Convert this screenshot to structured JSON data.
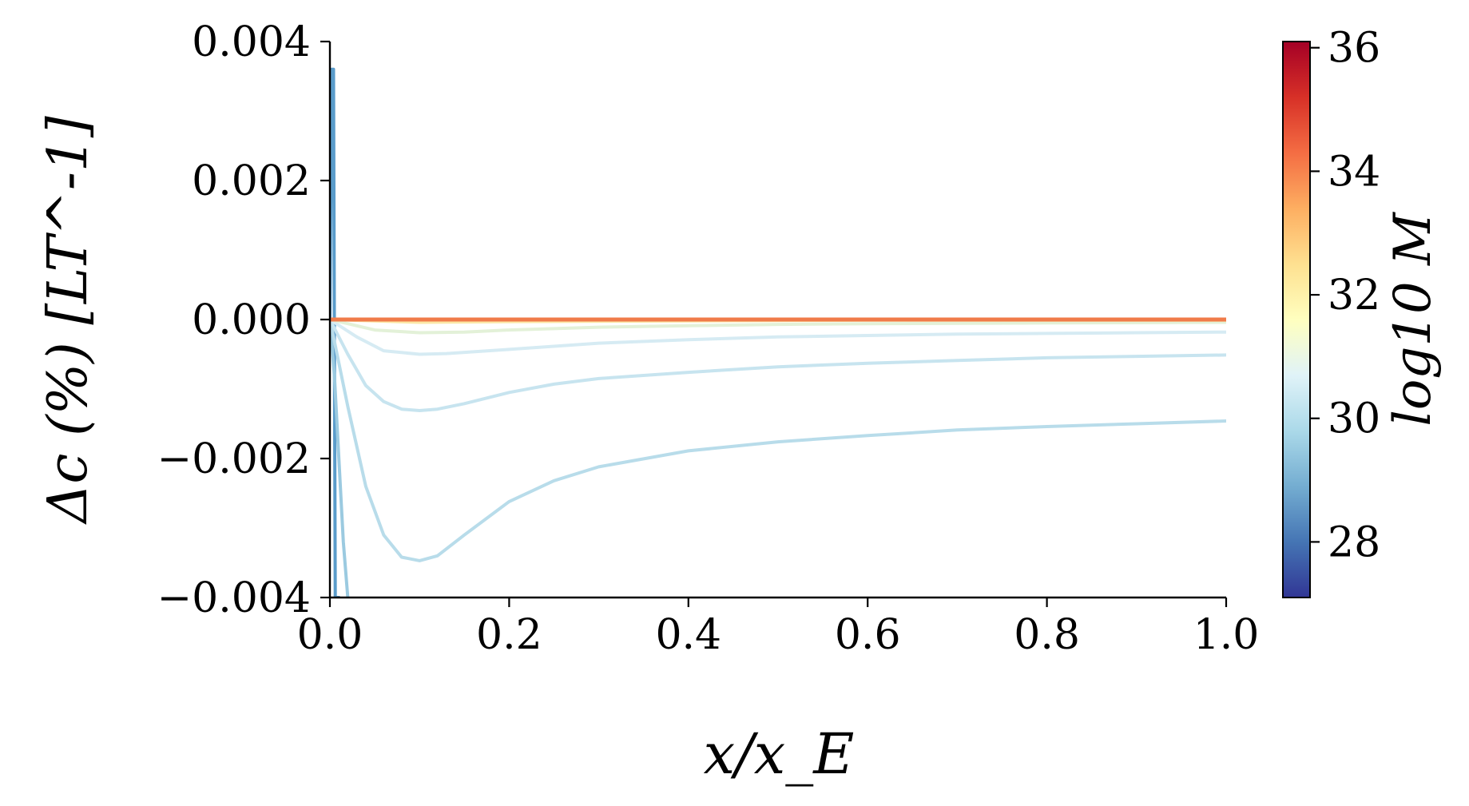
{
  "chart_data": {
    "type": "line",
    "xlabel": "x/x_E",
    "ylabel": "Δc (%) [LT^-1]",
    "xlim": [
      0.0,
      1.0
    ],
    "ylim": [
      -0.004,
      0.004
    ],
    "xticks": [
      "0.0",
      "0.2",
      "0.4",
      "0.6",
      "0.8",
      "1.0"
    ],
    "yticks": [
      "0.004",
      "0.002",
      "0.000",
      "−0.002",
      "−0.004"
    ],
    "grid": false,
    "legend": "none",
    "colorbar": {
      "label": "log10 M",
      "range": [
        27.1,
        36.1
      ],
      "ticks": [
        "28",
        "30",
        "32",
        "34",
        "36"
      ],
      "colormap": "RdYlBu_r"
    },
    "series": [
      {
        "log10M": 28,
        "color": "#5a9ccb",
        "x": [
          0.0,
          0.002,
          0.004,
          0.006,
          0.008,
          0.01
        ],
        "y": [
          0.0,
          0.0036,
          0.0036,
          -0.004,
          -0.004,
          -0.004
        ]
      },
      {
        "log10M": 29,
        "color": "#9bcae0",
        "x": [
          0.0,
          0.005,
          0.01,
          0.015,
          0.02
        ],
        "y": [
          0.0,
          -0.0008,
          -0.002,
          -0.0032,
          -0.004
        ]
      },
      {
        "log10M": 30,
        "color": "#b8dcea",
        "x": [
          0.0,
          0.02,
          0.04,
          0.06,
          0.08,
          0.1,
          0.12,
          0.15,
          0.2,
          0.25,
          0.3,
          0.4,
          0.5,
          0.6,
          0.7,
          0.8,
          0.9,
          1.0
        ],
        "y": [
          0.0,
          -0.00125,
          -0.0024,
          -0.0031,
          -0.00342,
          -0.00347,
          -0.0034,
          -0.0031,
          -0.00262,
          -0.00232,
          -0.00212,
          -0.00189,
          -0.00176,
          -0.00167,
          -0.00159,
          -0.00154,
          -0.0015,
          -0.00146
        ]
      },
      {
        "log10M": 30.5,
        "color": "#c7e4ef",
        "x": [
          0.0,
          0.02,
          0.04,
          0.06,
          0.08,
          0.1,
          0.12,
          0.15,
          0.2,
          0.25,
          0.3,
          0.4,
          0.5,
          0.6,
          0.7,
          0.8,
          0.9,
          1.0
        ],
        "y": [
          0.0,
          -0.0005,
          -0.00095,
          -0.00118,
          -0.00129,
          -0.00131,
          -0.00129,
          -0.00121,
          -0.00105,
          -0.00093,
          -0.00085,
          -0.00076,
          -0.00068,
          -0.00063,
          -0.00059,
          -0.00055,
          -0.00053,
          -0.00051
        ]
      },
      {
        "log10M": 31,
        "color": "#d6ebf3",
        "x": [
          0.0,
          0.03,
          0.06,
          0.1,
          0.13,
          0.2,
          0.3,
          0.4,
          0.5,
          0.6,
          0.7,
          0.8,
          0.9,
          1.0
        ],
        "y": [
          0.0,
          -0.00025,
          -0.00045,
          -0.0005,
          -0.00049,
          -0.00043,
          -0.00034,
          -0.00029,
          -0.00025,
          -0.00023,
          -0.00021,
          -0.0002,
          -0.00019,
          -0.00018
        ]
      },
      {
        "log10M": 31.5,
        "color": "#e3f1d8",
        "x": [
          0.0,
          0.05,
          0.1,
          0.15,
          0.2,
          0.3,
          0.4,
          0.5,
          0.6,
          0.8,
          1.0
        ],
        "y": [
          0.0,
          -0.00015,
          -0.00019,
          -0.00018,
          -0.00015,
          -0.00011,
          -9e-05,
          -7e-05,
          -6e-05,
          -5e-05,
          -4e-05
        ]
      },
      {
        "log10M": 32,
        "color": "#fbe8a8",
        "x": [
          0.0,
          0.1,
          0.2,
          0.4,
          0.6,
          0.8,
          1.0
        ],
        "y": [
          0.0,
          -4e-05,
          -3e-05,
          -2e-05,
          -1e-05,
          -1e-05,
          -1e-05
        ]
      },
      {
        "log10M": 34.5,
        "color": "#f07b4a",
        "x": [
          0.0,
          1.0
        ],
        "y": [
          0.0,
          0.0
        ]
      }
    ]
  }
}
